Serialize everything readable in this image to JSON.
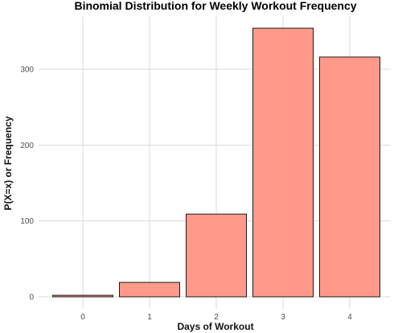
{
  "chart_data": {
    "type": "bar",
    "title": "Binomial Distribution for Weekly Workout Frequency",
    "xlabel": "Days of Workout",
    "ylabel": "P(X=x) or Frequency",
    "categories": [
      "0",
      "1",
      "2",
      "3",
      "4"
    ],
    "values": [
      2,
      19,
      109,
      354,
      316
    ],
    "yticks": [
      0,
      100,
      200,
      300
    ],
    "ytick_labels": [
      "0",
      "100",
      "200",
      "300"
    ],
    "ylim": [
      0,
      372
    ],
    "grid": true,
    "legend": "none",
    "bar_color": "#FF9A8B",
    "bar_edge_color": "#1a1a1a",
    "grid_color": "#d9d9d9"
  }
}
